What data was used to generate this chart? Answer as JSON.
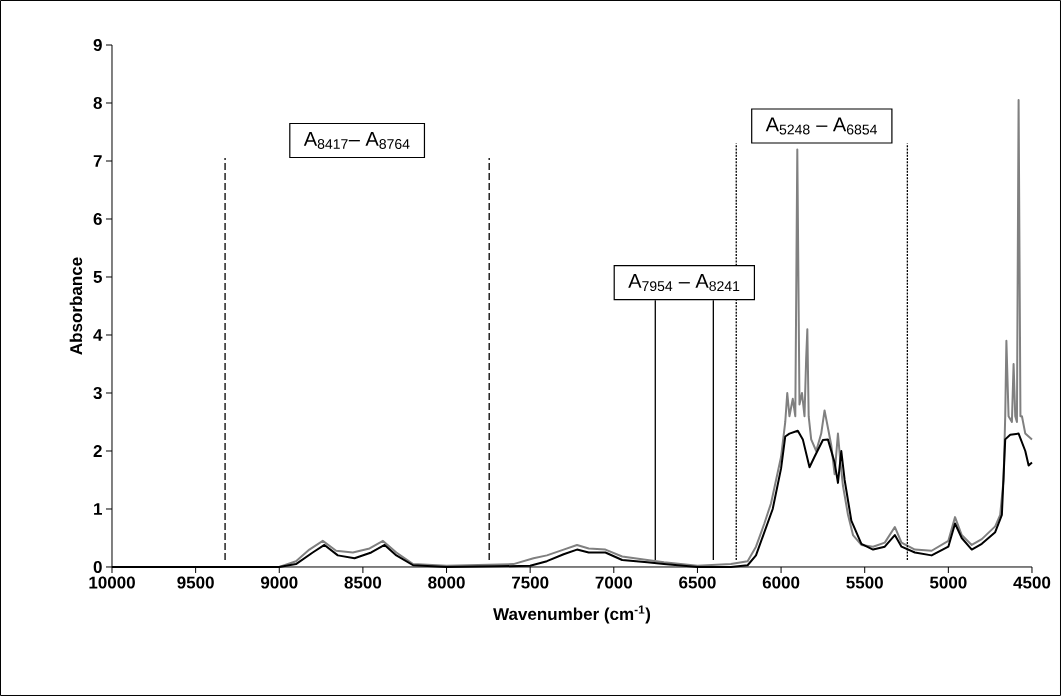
{
  "chart_data": {
    "type": "line",
    "xlabel": "Wavenumber (cm$^{-1}$)",
    "ylabel": "Absorbance",
    "xlim": [
      10000,
      4500
    ],
    "xticks": [
      10000,
      9500,
      9000,
      8500,
      8000,
      7500,
      7000,
      6500,
      6000,
      5500,
      5000,
      4500
    ],
    "ylim": [
      0,
      9
    ],
    "yticks": [
      0,
      1,
      2,
      3,
      4,
      5,
      6,
      7,
      8,
      9
    ],
    "grid": false,
    "series": [
      {
        "color": "#808080",
        "x": [
          10000,
          9500,
          9000,
          8900,
          8820,
          8740,
          8660,
          8560,
          8460,
          8380,
          8300,
          8200,
          8000,
          7600,
          7480,
          7400,
          7300,
          7220,
          7150,
          7050,
          6950,
          6800,
          6700,
          6500,
          6300,
          6200,
          6150,
          6100,
          6060,
          6000,
          5975,
          5963,
          5950,
          5930,
          5915,
          5903,
          5890,
          5875,
          5860,
          5850,
          5843,
          5835,
          5820,
          5790,
          5760,
          5740,
          5720,
          5700,
          5680,
          5660,
          5645,
          5630,
          5600,
          5570,
          5520,
          5450,
          5380,
          5320,
          5280,
          5200,
          5100,
          5000,
          4960,
          4920,
          4860,
          4800,
          4720,
          4690,
          4670,
          4660,
          4653,
          4640,
          4620,
          4610,
          4600,
          4590,
          4580,
          4569,
          4560,
          4540,
          4520,
          4500
        ],
        "values": [
          0,
          0,
          0,
          0.1,
          0.3,
          0.45,
          0.28,
          0.25,
          0.32,
          0.45,
          0.25,
          0.05,
          0.02,
          0.05,
          0.15,
          0.2,
          0.3,
          0.38,
          0.32,
          0.3,
          0.18,
          0.12,
          0.08,
          0.02,
          0.05,
          0.1,
          0.35,
          0.75,
          1.1,
          1.9,
          2.5,
          3.0,
          2.6,
          2.9,
          2.6,
          7.2,
          2.8,
          3.0,
          2.6,
          3.6,
          4.1,
          2.6,
          2.2,
          2.0,
          2.3,
          2.7,
          2.4,
          2.1,
          1.6,
          2.3,
          1.8,
          1.4,
          0.9,
          0.55,
          0.38,
          0.35,
          0.42,
          0.69,
          0.42,
          0.3,
          0.28,
          0.45,
          0.86,
          0.55,
          0.38,
          0.48,
          0.7,
          0.9,
          1.5,
          2.6,
          3.9,
          2.6,
          2.5,
          3.5,
          2.6,
          2.5,
          8.05,
          2.6,
          2.6,
          2.3,
          2.25,
          2.2
        ]
      },
      {
        "color": "#000000",
        "x": [
          10000,
          9500,
          9000,
          8900,
          8800,
          8730,
          8650,
          8550,
          8450,
          8370,
          8300,
          8200,
          8000,
          7500,
          7400,
          7300,
          7220,
          7150,
          7050,
          6950,
          6800,
          6700,
          6500,
          6300,
          6200,
          6150,
          6100,
          6050,
          6000,
          5975,
          5950,
          5900,
          5870,
          5830,
          5800,
          5750,
          5720,
          5680,
          5660,
          5640,
          5620,
          5580,
          5520,
          5450,
          5380,
          5320,
          5280,
          5200,
          5100,
          5000,
          4960,
          4920,
          4860,
          4800,
          4720,
          4680,
          4660,
          4630,
          4580,
          4540,
          4520,
          4500
        ],
        "values": [
          0,
          0,
          0,
          0.05,
          0.25,
          0.38,
          0.2,
          0.15,
          0.25,
          0.38,
          0.2,
          0.03,
          0,
          0.02,
          0.1,
          0.22,
          0.3,
          0.25,
          0.25,
          0.12,
          0.08,
          0.05,
          0,
          0,
          0.03,
          0.2,
          0.6,
          1.0,
          1.7,
          2.25,
          2.3,
          2.35,
          2.2,
          1.72,
          1.9,
          2.19,
          2.2,
          1.8,
          1.45,
          2.0,
          1.5,
          0.8,
          0.4,
          0.3,
          0.35,
          0.55,
          0.35,
          0.25,
          0.2,
          0.35,
          0.75,
          0.5,
          0.3,
          0.4,
          0.6,
          0.9,
          2.2,
          2.28,
          2.3,
          2.0,
          1.75,
          1.8
        ]
      }
    ],
    "ref_lines": [
      {
        "axis": "x",
        "value": 9324,
        "line_style": "dashed",
        "color": "#000000"
      },
      {
        "axis": "x",
        "value": 7745,
        "line_style": "dashed",
        "color": "#000000"
      },
      {
        "axis": "x",
        "value": 6752,
        "line_style": "solid",
        "color": "#000000"
      },
      {
        "axis": "x",
        "value": 6405,
        "line_style": "solid",
        "color": "#000000"
      },
      {
        "axis": "x",
        "value": 6268,
        "line_style": "dotted",
        "color": "#000000"
      },
      {
        "axis": "x",
        "value": 5245,
        "line_style": "dotted",
        "color": "#000000"
      }
    ],
    "annotations": [
      "A$_{8417}$– A$_{8764}$",
      "A$_{7954}$ – A$_{8241}$",
      "A$_{5248}$ – A$_{6854}$"
    ]
  }
}
